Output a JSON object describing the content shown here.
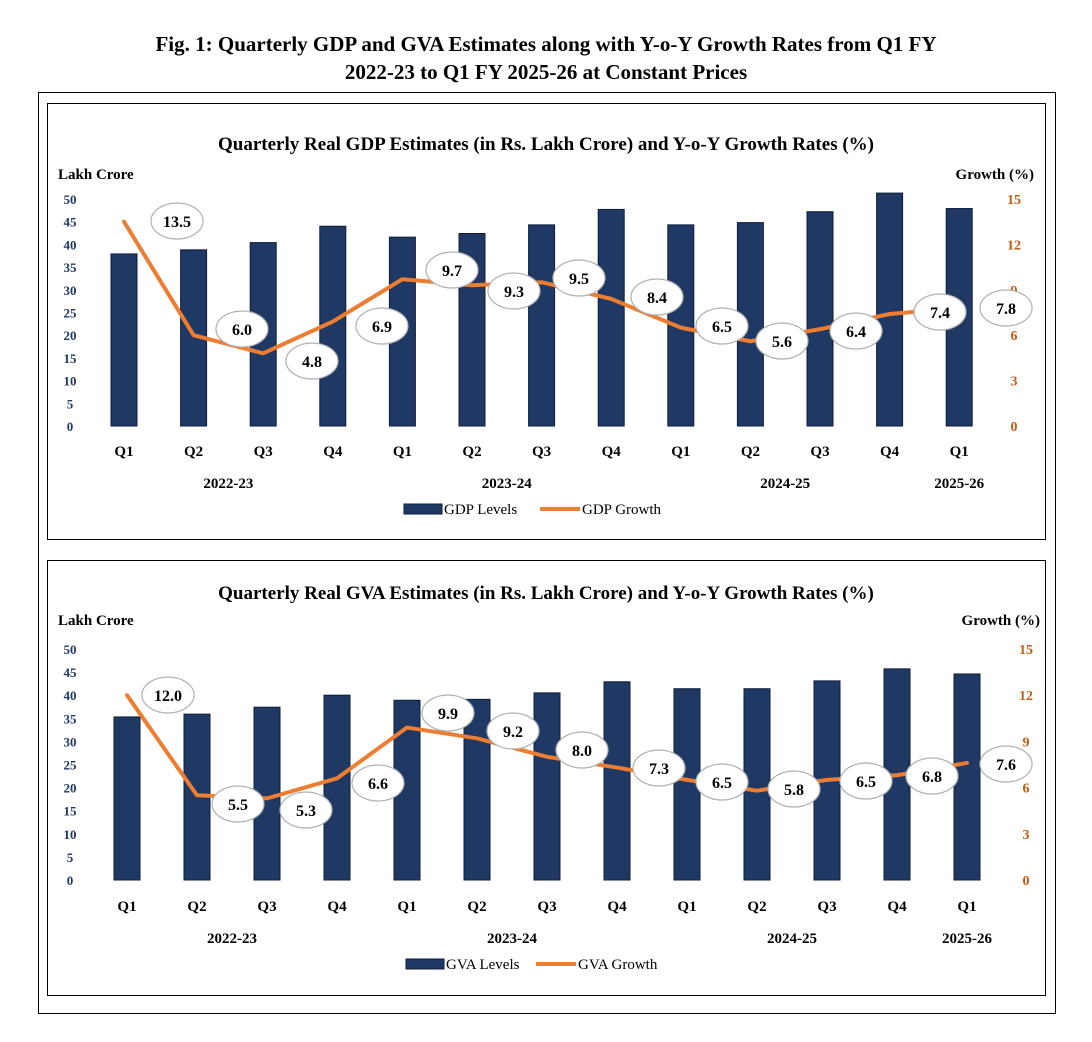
{
  "figure_title": {
    "line1": "Fig. 1: Quarterly GDP and GVA Estimates along with Y-o-Y Growth Rates from Q1 FY",
    "line2": "2022-23 to Q1 FY 2025-26 at Constant Prices"
  },
  "chart_data": [
    {
      "id": "gdp",
      "type": "bar+line",
      "title": "Quarterly Real GDP Estimates (in Rs. Lakh Crore) and Y-o-Y Growth Rates (%)",
      "ylabel_left": "Lakh Crore",
      "ylabel_right": "Growth (%)",
      "ylim_left": [
        0,
        50
      ],
      "yticks_left": [
        0,
        5,
        10,
        15,
        20,
        25,
        30,
        35,
        40,
        45,
        50
      ],
      "ylim_right": [
        0,
        15
      ],
      "yticks_right": [
        0,
        3,
        6,
        9,
        12,
        15
      ],
      "categories": [
        "Q1",
        "Q2",
        "Q3",
        "Q4",
        "Q1",
        "Q2",
        "Q3",
        "Q4",
        "Q1",
        "Q2",
        "Q3",
        "Q4",
        "Q1"
      ],
      "year_groups": [
        {
          "label": "2022-23",
          "start": 0,
          "end": 3
        },
        {
          "label": "2023-24",
          "start": 4,
          "end": 7
        },
        {
          "label": "2024-25",
          "start": 8,
          "end": 11
        },
        {
          "label": "2025-26",
          "start": 12,
          "end": 12
        }
      ],
      "series": [
        {
          "name": "GDP Levels",
          "type": "bar",
          "color": "#1f3864",
          "values": [
            37.9,
            38.8,
            40.4,
            44.0,
            41.6,
            42.4,
            44.3,
            47.7,
            44.3,
            44.8,
            47.2,
            51.3,
            47.9
          ]
        },
        {
          "name": "GDP Growth",
          "type": "line",
          "color": "#ed7d31",
          "values": [
            13.5,
            6.0,
            4.8,
            6.9,
            9.7,
            9.3,
            9.5,
            8.4,
            6.5,
            5.6,
            6.4,
            7.4,
            7.8
          ],
          "labels": [
            "13.5",
            "6.0",
            "4.8",
            "6.9",
            "9.7",
            "9.3",
            "9.5",
            "8.4",
            "6.5",
            "5.6",
            "6.4",
            "7.4",
            "7.8"
          ]
        }
      ],
      "legend": {
        "position": "bottom-center",
        "bar_label": "GDP Levels",
        "line_label": "GDP Growth"
      }
    },
    {
      "id": "gva",
      "type": "bar+line",
      "title": "Quarterly Real GVA Estimates (in Rs. Lakh Crore) and Y-o-Y Growth Rates (%)",
      "ylabel_left": "Lakh Crore",
      "ylabel_right": "Growth (%)",
      "ylim_left": [
        0,
        50
      ],
      "yticks_left": [
        0,
        5,
        10,
        15,
        20,
        25,
        30,
        35,
        40,
        45,
        50
      ],
      "ylim_right": [
        0,
        15
      ],
      "yticks_right": [
        0,
        3,
        6,
        9,
        12,
        15
      ],
      "categories": [
        "Q1",
        "Q2",
        "Q3",
        "Q4",
        "Q1",
        "Q2",
        "Q3",
        "Q4",
        "Q1",
        "Q2",
        "Q3",
        "Q4",
        "Q1"
      ],
      "year_groups": [
        {
          "label": "2022-23",
          "start": 0,
          "end": 3
        },
        {
          "label": "2023-24",
          "start": 4,
          "end": 7
        },
        {
          "label": "2024-25",
          "start": 8,
          "end": 11
        },
        {
          "label": "2025-26",
          "start": 12,
          "end": 12
        }
      ],
      "series": [
        {
          "name": "GVA Levels",
          "type": "bar",
          "color": "#1f3864",
          "values": [
            35.3,
            35.9,
            37.4,
            40.0,
            38.9,
            39.1,
            40.5,
            42.9,
            41.4,
            41.4,
            43.1,
            45.7,
            44.6
          ]
        },
        {
          "name": "GVA Growth",
          "type": "line",
          "color": "#ed7d31",
          "values": [
            12.0,
            5.5,
            5.3,
            6.6,
            9.9,
            9.2,
            8.0,
            7.3,
            6.5,
            5.8,
            6.5,
            6.8,
            7.6
          ],
          "labels": [
            "12.0",
            "5.5",
            "5.3",
            "6.6",
            "9.9",
            "9.2",
            "8.0",
            "7.3",
            "6.5",
            "5.8",
            "6.5",
            "6.8",
            "7.6"
          ]
        }
      ],
      "legend": {
        "position": "bottom-center",
        "bar_label": "GVA Levels",
        "line_label": "GVA Growth"
      }
    }
  ]
}
